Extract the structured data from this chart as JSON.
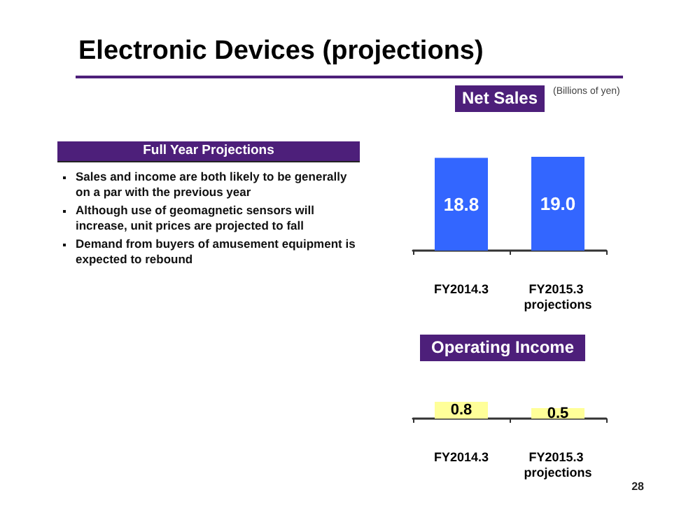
{
  "chart_data": [
    {
      "type": "other",
      "title": "Electronic Devices (projections)",
      "subtitle": "Full Year Projections",
      "annotations": [
        "Sales and income are both likely to be generally on a par with the previous year",
        "Although use of geomagnetic sensors will increase, unit prices are projected to fall",
        "Demand from buyers of amusement equipment is expected to rebound",
        "28"
      ]
    },
    {
      "type": "bar",
      "title": "Net Sales",
      "annotations": [
        "(Billions of yen)"
      ],
      "categories": [
        "FY2014.3",
        "FY2015.3 projections"
      ],
      "values": [
        18.8,
        19.0
      ],
      "value_labels": [
        "18.8",
        "19.0"
      ],
      "color": "#3366ff"
    },
    {
      "type": "bar",
      "title": "Operating Income",
      "categories": [
        "FY2014.3",
        "FY2015.3 projections"
      ],
      "values": [
        0.8,
        0.5
      ],
      "value_labels": [
        "0.8",
        "0.5"
      ],
      "color": "#ffff99"
    }
  ]
}
